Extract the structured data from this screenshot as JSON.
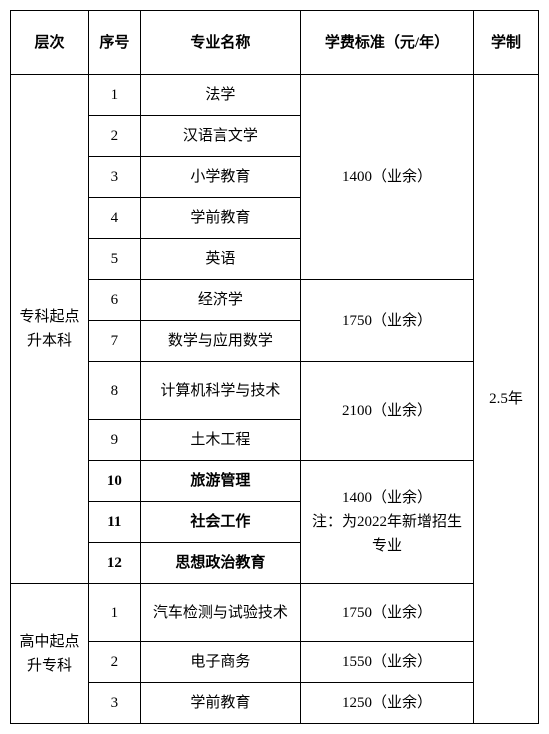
{
  "headers": {
    "level": "层次",
    "seq": "序号",
    "major": "专业名称",
    "fee": "学费标准（元/年）",
    "system": "学制"
  },
  "levels": {
    "benke": "专科起点升本科",
    "zhuanke": "高中起点升专科"
  },
  "system_value": "2.5年",
  "fees": {
    "g1": "1400（业余）",
    "g2": "1750（业余）",
    "g3": "2100（业余）",
    "g4_line1": "1400（业余）",
    "g4_line2": "注：为2022年新增招生专业",
    "g5": "1750（业余）",
    "g6": "1550（业余）",
    "g7": "1250（业余）"
  },
  "benke_rows": {
    "r1": {
      "seq": "1",
      "major": "法学"
    },
    "r2": {
      "seq": "2",
      "major": "汉语言文学"
    },
    "r3": {
      "seq": "3",
      "major": "小学教育"
    },
    "r4": {
      "seq": "4",
      "major": "学前教育"
    },
    "r5": {
      "seq": "5",
      "major": "英语"
    },
    "r6": {
      "seq": "6",
      "major": "经济学"
    },
    "r7": {
      "seq": "7",
      "major": "数学与应用数学"
    },
    "r8": {
      "seq": "8",
      "major": "计算机科学与技术"
    },
    "r9": {
      "seq": "9",
      "major": "土木工程"
    },
    "r10": {
      "seq": "10",
      "major": "旅游管理"
    },
    "r11": {
      "seq": "11",
      "major": "社会工作"
    },
    "r12": {
      "seq": "12",
      "major": "思想政治教育"
    }
  },
  "zhuanke_rows": {
    "r1": {
      "seq": "1",
      "major": "汽车检测与试验技术"
    },
    "r2": {
      "seq": "2",
      "major": "电子商务"
    },
    "r3": {
      "seq": "3",
      "major": "学前教育"
    }
  }
}
